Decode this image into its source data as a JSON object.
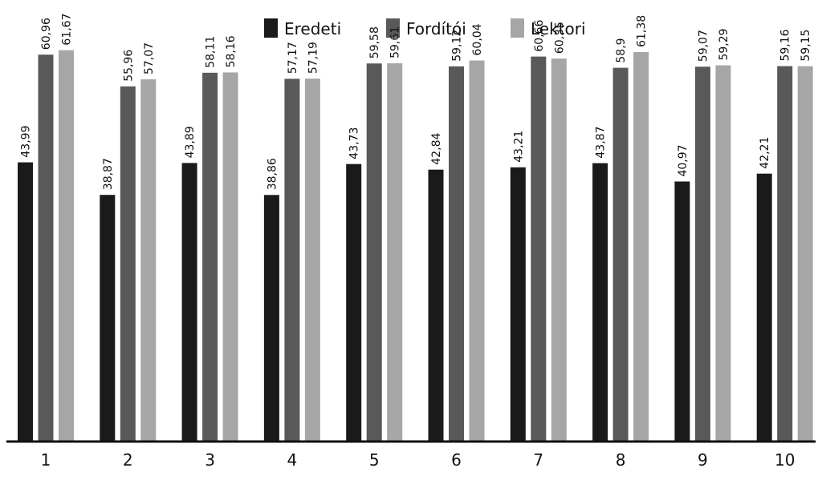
{
  "chart_data": {
    "type": "bar",
    "categories": [
      "1",
      "2",
      "3",
      "4",
      "5",
      "6",
      "7",
      "8",
      "9",
      "10"
    ],
    "series": [
      {
        "name": "Eredeti",
        "color": "#1a1a1a",
        "values": [
          43.99,
          38.87,
          43.89,
          38.86,
          43.73,
          42.84,
          43.21,
          43.87,
          40.97,
          42.21
        ],
        "labels": [
          "43,99",
          "38,87",
          "43,89",
          "38,86",
          "43,73",
          "42,84",
          "43,21",
          "43,87",
          "40,97",
          "42,21"
        ]
      },
      {
        "name": "Fordítói",
        "color": "#595959",
        "values": [
          60.96,
          55.96,
          58.11,
          57.17,
          59.58,
          59.12,
          60.66,
          58.9,
          59.07,
          59.16
        ],
        "labels": [
          "60,96",
          "55,96",
          "58,11",
          "57,17",
          "59,58",
          "59,12",
          "60,66",
          "58,9",
          "59,07",
          "59,16"
        ]
      },
      {
        "name": "Lektori",
        "color": "#a6a6a6",
        "values": [
          61.67,
          57.07,
          58.16,
          57.19,
          59.61,
          60.04,
          60.35,
          61.38,
          59.29,
          59.15
        ],
        "labels": [
          "61,67",
          "57,07",
          "58,16",
          "57,19",
          "59,61",
          "60,04",
          "60,35",
          "61,38",
          "59,29",
          "59,15"
        ]
      }
    ],
    "ylim": [
      0,
      62
    ],
    "grid": false,
    "legend_position": "top-center"
  }
}
